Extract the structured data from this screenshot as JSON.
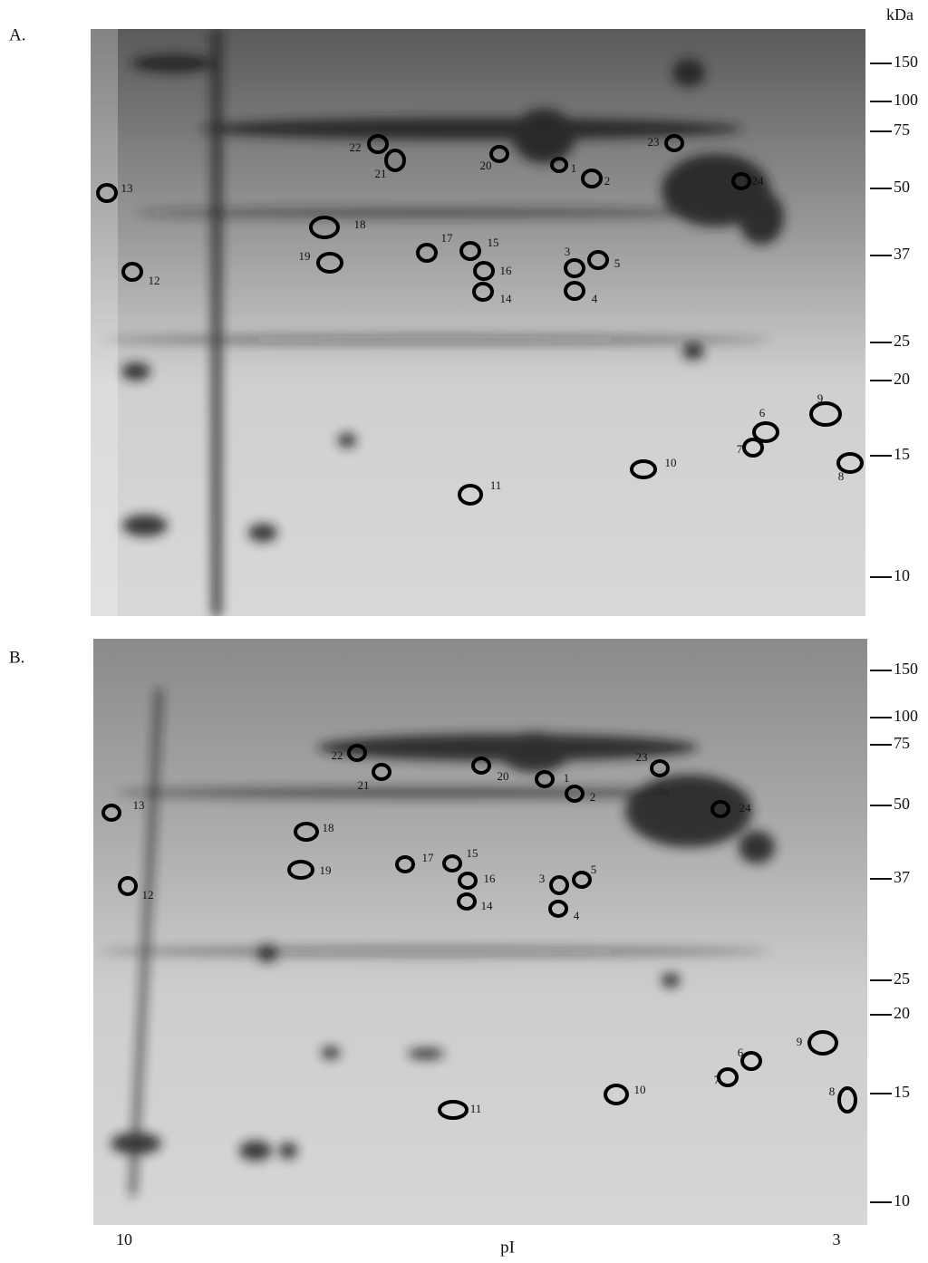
{
  "panels": [
    {
      "label": "A.",
      "mass_unit": "kDa",
      "mass_markers": [
        "150",
        "100",
        "75",
        "50",
        "37",
        "25",
        "20",
        "15",
        "10"
      ],
      "spots": [
        "1",
        "2",
        "3",
        "4",
        "5",
        "6",
        "7",
        "8",
        "9",
        "10",
        "11",
        "12",
        "13",
        "14",
        "15",
        "16",
        "17",
        "18",
        "19",
        "20",
        "21",
        "22",
        "23",
        "24"
      ]
    },
    {
      "label": "B.",
      "mass_markers": [
        "150",
        "100",
        "75",
        "50",
        "37",
        "25",
        "20",
        "15",
        "10"
      ],
      "spots": [
        "1",
        "2",
        "3",
        "4",
        "5",
        "6",
        "7",
        "8",
        "9",
        "10",
        "11",
        "12",
        "13",
        "14",
        "15",
        "16",
        "17",
        "18",
        "19",
        "20",
        "21",
        "22",
        "23",
        "24"
      ]
    }
  ],
  "pI_axis": {
    "label": "pI",
    "left": "10",
    "right": "3"
  }
}
